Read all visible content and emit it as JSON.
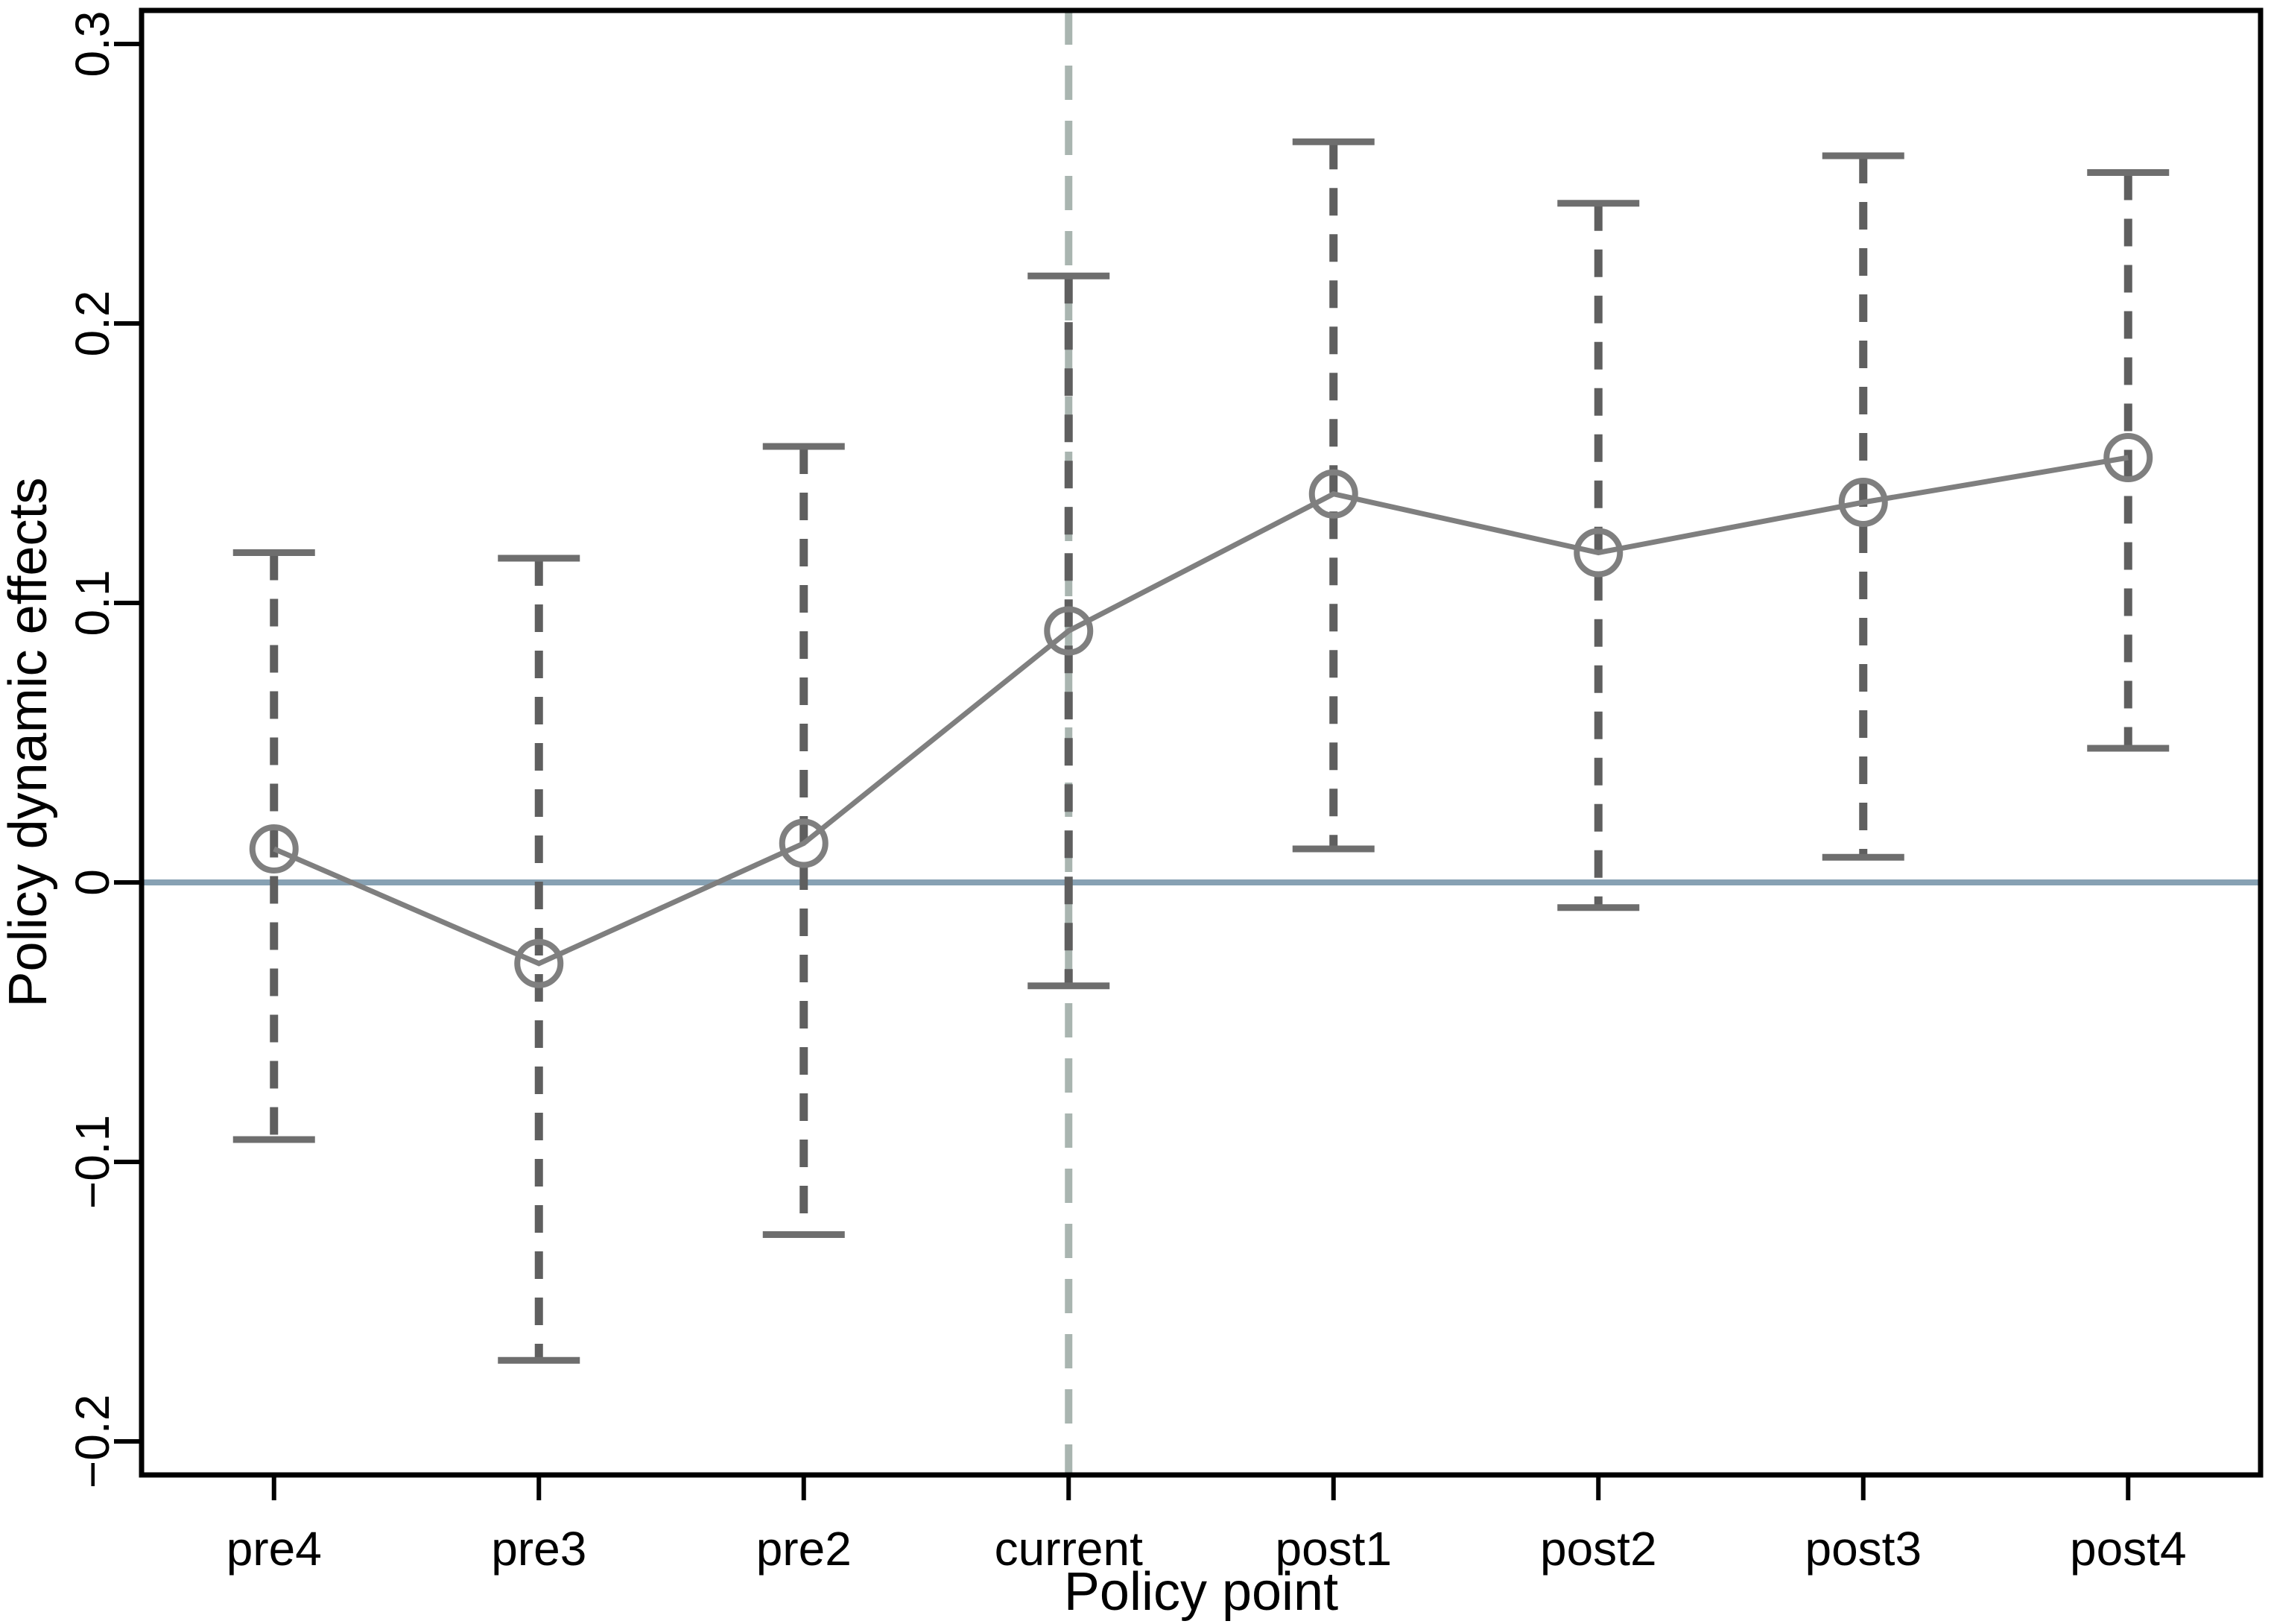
{
  "figure": {
    "background": "#ffffff"
  },
  "chart_data": {
    "type": "line",
    "title": "",
    "xlabel": "Policy point",
    "ylabel": "Policy dynamic effects",
    "categories": [
      "pre4",
      "pre3",
      "pre2",
      "current",
      "post1",
      "post2",
      "post3",
      "post4"
    ],
    "series": [
      {
        "name": "Policy dynamic effects",
        "values": [
          0.012,
          -0.029,
          0.014,
          0.09,
          0.139,
          0.118,
          0.136,
          0.152
        ],
        "ci_lower": [
          -0.092,
          -0.171,
          -0.126,
          -0.037,
          0.012,
          -0.009,
          0.009,
          0.048
        ],
        "ci_upper": [
          0.118,
          0.116,
          0.156,
          0.217,
          0.265,
          0.243,
          0.26,
          0.254
        ]
      }
    ],
    "y_ticks": [
      0.3,
      0.2,
      0.1,
      0,
      -0.1,
      -0.2
    ],
    "y_tick_labels": [
      "0.3",
      "0.2",
      "0.1",
      "0",
      "−0.1",
      "−0.2"
    ],
    "ylim": [
      -0.212,
      0.312
    ],
    "grid": false,
    "legend": false,
    "marker": "open-circle",
    "error_bar_style": "dashed",
    "reference_lines": {
      "horizontal_zero": 0,
      "vertical_at_category": "current"
    },
    "colors": {
      "series": "#7f7f7f",
      "error_bar": "#5f5f5f",
      "error_bar_cap": "#6e6e6e",
      "zero_line": "#87a1b3",
      "vertical_line": "#a9b5b0",
      "axis": "#000000",
      "text": "#000000"
    }
  }
}
